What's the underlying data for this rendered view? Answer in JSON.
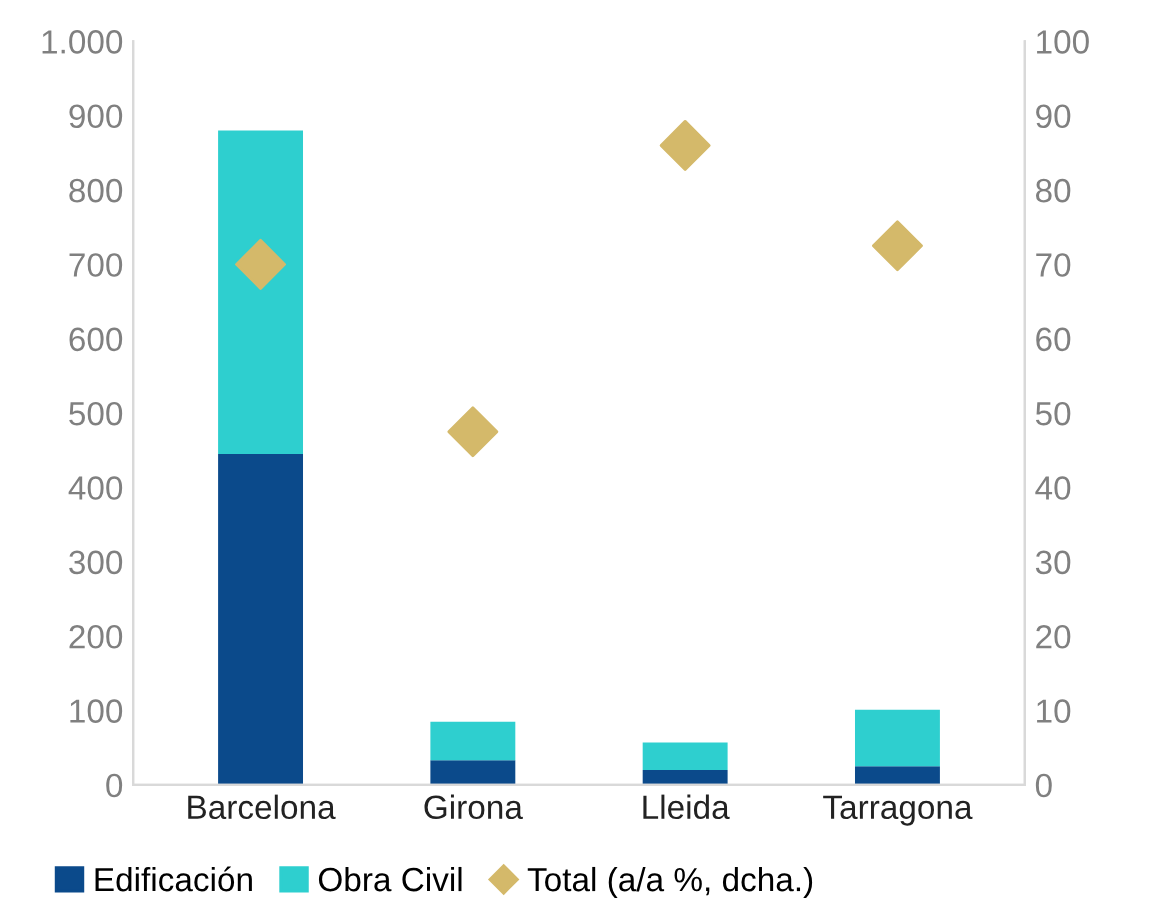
{
  "chart_data": {
    "type": "bar",
    "stacked": true,
    "categories": [
      "Barcelona",
      "Girona",
      "Lleida",
      "Tarragona"
    ],
    "series": [
      {
        "name": "Edificación",
        "color": "#0b4a8b",
        "values": [
          445,
          33,
          20,
          25
        ]
      },
      {
        "name": "Obra Civil",
        "color": "#2ecfcf",
        "values": [
          435,
          52,
          37,
          76
        ]
      },
      {
        "name": "Total (a/a %, dcha.)",
        "color": "#d4b96a",
        "type": "scatter",
        "axis": "y2",
        "marker": "diamond",
        "values": [
          70,
          47.5,
          86,
          72.5
        ]
      }
    ],
    "ylim": [
      0,
      1000
    ],
    "yticks": [
      0,
      100,
      200,
      300,
      400,
      500,
      600,
      700,
      800,
      900,
      {
        "value": 1000,
        "label": "1.000"
      }
    ],
    "y2lim": [
      0,
      100
    ],
    "y2ticks": [
      0,
      10,
      20,
      30,
      40,
      50,
      60,
      70,
      80,
      90,
      100
    ],
    "grid": false,
    "legend": "bottom"
  }
}
